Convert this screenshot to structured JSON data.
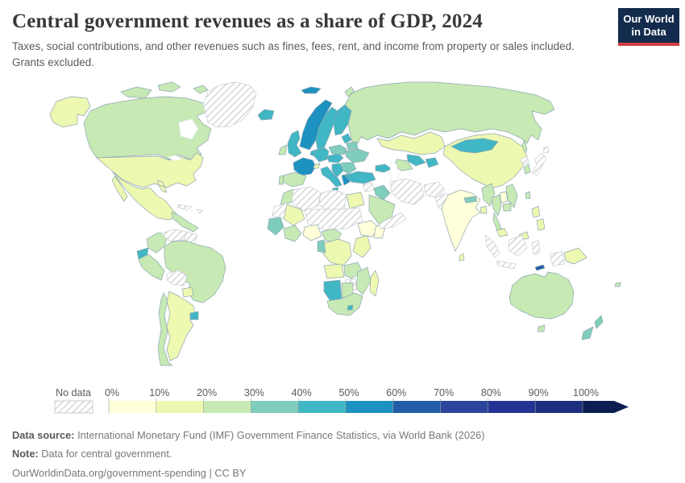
{
  "header": {
    "title": "Central government revenues as a share of GDP, 2024",
    "subtitle": "Taxes, social contributions, and other revenues such as fines, fees, rent, and income from property or sales included. Grants excluded.",
    "logo": {
      "line1": "Our World",
      "line2": "in Data",
      "bg": "#132c4d",
      "accent": "#d13f3f"
    }
  },
  "legend": {
    "no_data_label": "No data",
    "tick_labels": [
      "0%",
      "10%",
      "20%",
      "30%",
      "40%",
      "50%",
      "60%",
      "70%",
      "80%",
      "90%",
      "100%"
    ],
    "colors": [
      "#ffffd9",
      "#edf8b1",
      "#c7e9b4",
      "#7fcdbb",
      "#41b6c4",
      "#1d91c0",
      "#225ea8",
      "#2c459c",
      "#253494",
      "#1d2f7e",
      "#0b1d51"
    ]
  },
  "chart_data": {
    "type": "heatmap",
    "title": "Central government revenues as a share of GDP, 2024",
    "unit": "% of GDP",
    "bin_edges_percent": [
      0,
      10,
      20,
      30,
      40,
      50,
      60,
      70,
      80,
      90,
      100
    ],
    "bin_labels": [
      "0-10%",
      "10-20%",
      "20-30%",
      "30-40%",
      "40-50%",
      "50-60%",
      "60-70%",
      "70-80%",
      "80-90%",
      "90-100%",
      "100%+",
      "No data"
    ],
    "legend_position": "bottom",
    "regions": {
      "canada": 2,
      "usa": 1,
      "greenland": -1,
      "iceland": 4,
      "mexico": 1,
      "central-america": 2,
      "cuba": -1,
      "hispaniola": -1,
      "colombia": 2,
      "venezuela": -1,
      "guyanas": -1,
      "ecuador": 4,
      "peru": 2,
      "brazil": 2,
      "bolivia": -1,
      "paraguay": 1,
      "uruguay": 4,
      "argentina": 1,
      "chile": 2,
      "svalbard": 5,
      "norway": 5,
      "sweden": 4,
      "finland": 4,
      "denmark": 5,
      "uk": 4,
      "ireland": 2,
      "france": 5,
      "spain": 2,
      "portugal": 2,
      "germany": 4,
      "benelux": 4,
      "switzerland": 1,
      "italy": 4,
      "austria-czechia": 4,
      "poland": 3,
      "baltics": 4,
      "belarus": 3,
      "ukraine": 3,
      "romania-bulgaria": 3,
      "balkans": 4,
      "greece": 5,
      "morocco": 2,
      "western-sahara-mauritania": -1,
      "algeria": -1,
      "libya": -1,
      "egypt": 1,
      "mali-burkina": 1,
      "niger-chad-sudan": -1,
      "senegal-guinea": 3,
      "west-africa-coast": 2,
      "nigeria": 0,
      "cameroon-car": 2,
      "ethiopia": 0,
      "somalia": 0,
      "kenya-tanzania": 1,
      "dr-congo": 1,
      "gabon-congo": 3,
      "angola": 1,
      "zambia-malawi": 2,
      "mozambique": 2,
      "zimbabwe": -1,
      "namibia": 4,
      "botswana": 2,
      "south-africa": 2,
      "lesotho": 4,
      "madagascar": 1,
      "russia": 2,
      "kazakhstan": 1,
      "uzbekistan": 4,
      "turkmenistan": 2,
      "kyrgyzstan-tajikistan": 4,
      "caucasus": 4,
      "turkey": 4,
      "syria": -1,
      "iraq": 3,
      "iran": -1,
      "afghanistan": -1,
      "pakistan": -1,
      "saudi-arabia": 2,
      "yemen-oman": -1,
      "india": 0,
      "sri-lanka": 1,
      "nepal": 3,
      "bangladesh": 1,
      "china": 1,
      "mongolia": 4,
      "myanmar": 2,
      "thailand": 2,
      "laos": 0,
      "vietnam": 2,
      "cambodia": 2,
      "malaysia": 1,
      "indonesia": -1,
      "papua-new-guinea": 1,
      "timor-leste": 6,
      "philippines": 1,
      "taiwan": 2,
      "south-korea": 2,
      "north-korea": -1,
      "japan": -1,
      "australia": 2,
      "new-zealand": 3,
      "fiji": 2
    }
  },
  "footer": {
    "source_label": "Data source:",
    "source_text": " International Monetary Fund (IMF) Government Finance Statistics, via World Bank (2026)",
    "note_label": "Note:",
    "note_text": " Data for central government.",
    "citation": "OurWorldinData.org/government-spending | CC BY"
  }
}
